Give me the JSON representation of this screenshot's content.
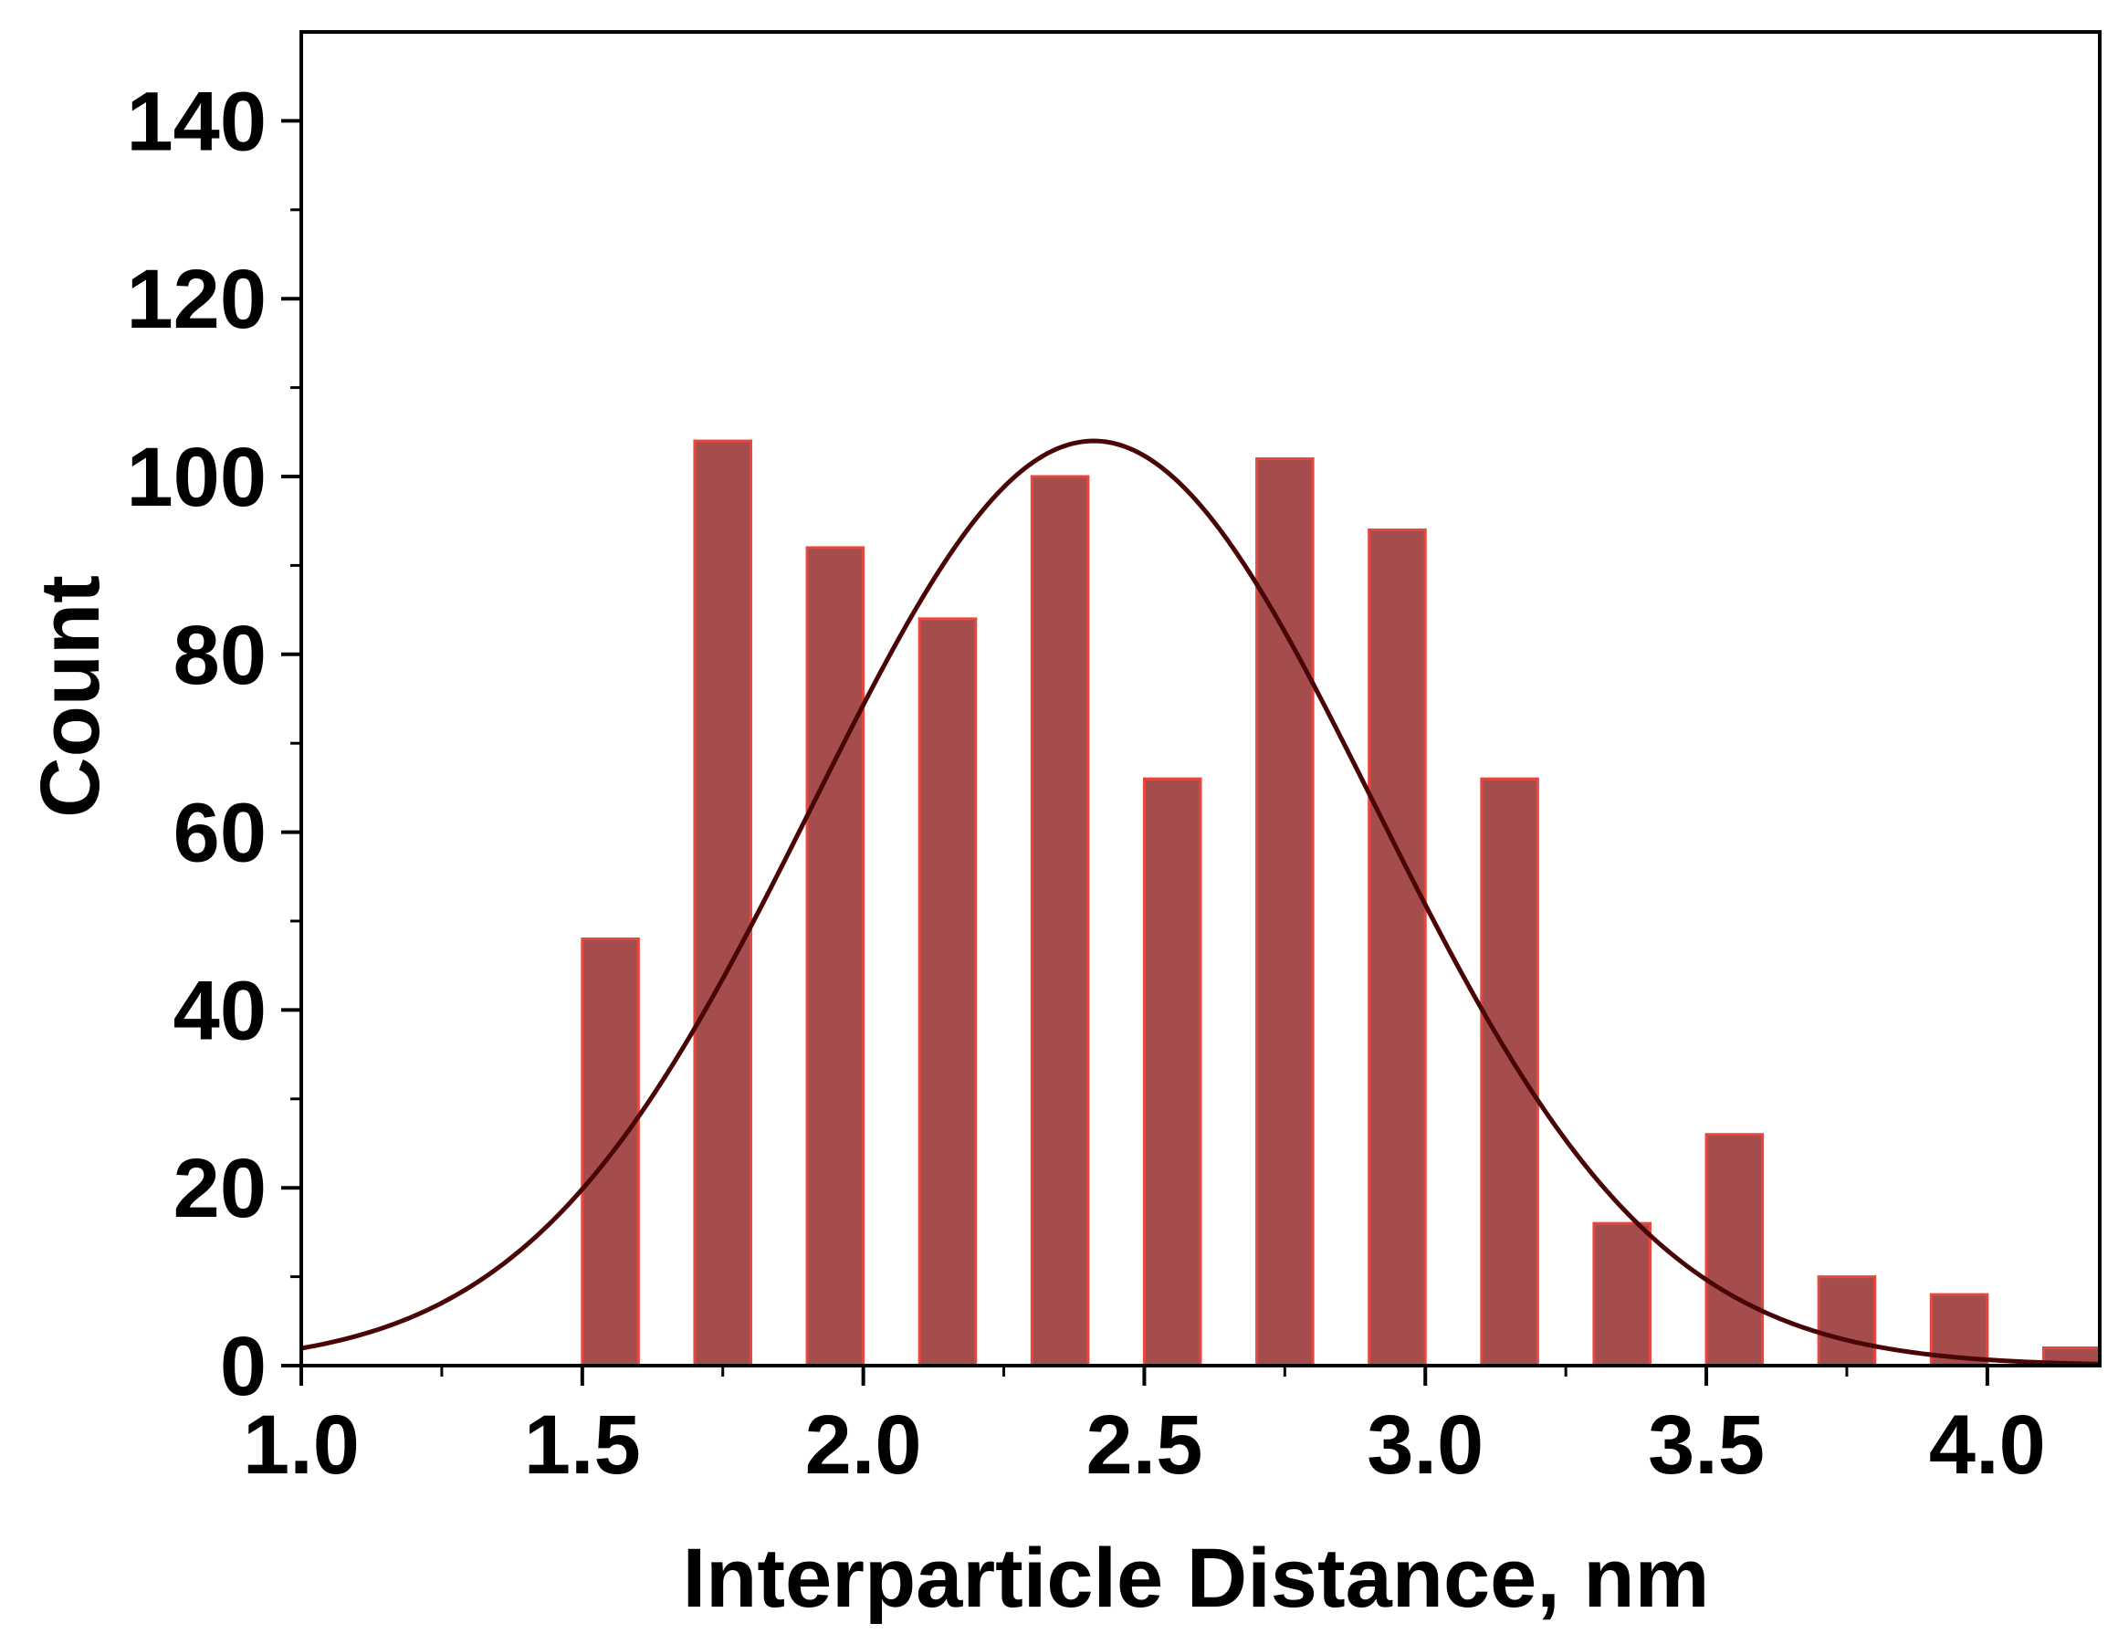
{
  "chart_data": {
    "type": "bar",
    "xlabel": "Interparticle Distance, nm",
    "ylabel": "Count",
    "xlim": [
      1.0,
      4.2
    ],
    "ylim": [
      0,
      150
    ],
    "x_ticks": [
      "1.0",
      "1.5",
      "2.0",
      "2.5",
      "3.0",
      "3.5",
      "4.0"
    ],
    "y_ticks": [
      "0",
      "20",
      "40",
      "60",
      "80",
      "100",
      "120",
      "140"
    ],
    "bin_width": 0.1,
    "bins": [
      {
        "center": 1.55,
        "value": 48
      },
      {
        "center": 1.75,
        "value": 104
      },
      {
        "center": 1.95,
        "value": 92
      },
      {
        "center": 2.15,
        "value": 84
      },
      {
        "center": 2.35,
        "value": 100
      },
      {
        "center": 2.55,
        "value": 66
      },
      {
        "center": 2.75,
        "value": 102
      },
      {
        "center": 2.95,
        "value": 94
      },
      {
        "center": 3.15,
        "value": 66
      },
      {
        "center": 3.35,
        "value": 16
      },
      {
        "center": 3.55,
        "value": 26
      },
      {
        "center": 3.75,
        "value": 10
      },
      {
        "center": 3.95,
        "value": 8
      },
      {
        "center": 4.15,
        "value": 2
      }
    ],
    "fit": {
      "type": "gaussian",
      "mean": 2.41,
      "sigma": 0.5,
      "peak": 104
    },
    "colors": {
      "bar_fill": "#a54d4d",
      "bar_edge": "#e8473f",
      "fit_line": "#4a0606",
      "axis": "#000000"
    },
    "grid": false,
    "legend": "none"
  }
}
